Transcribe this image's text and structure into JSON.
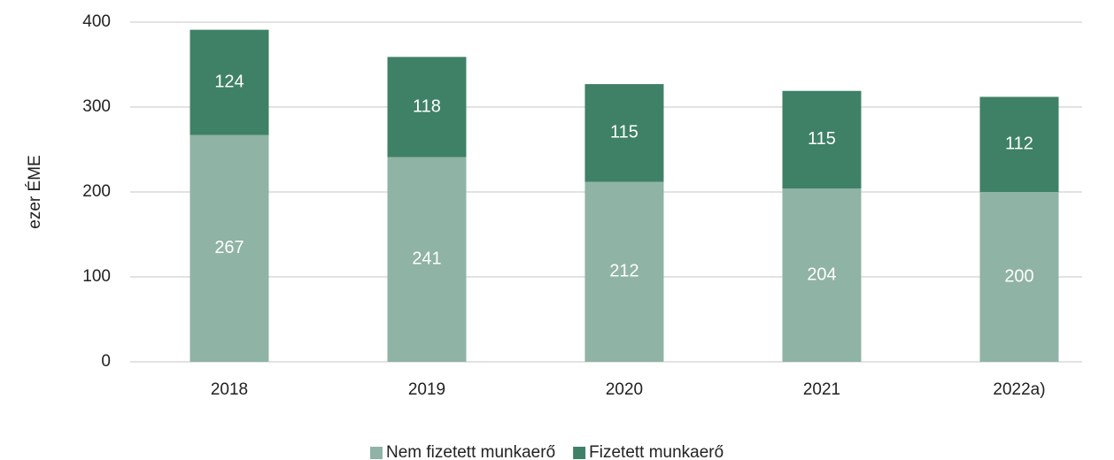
{
  "chart_data": {
    "type": "stacked_bar",
    "y_label": "ezer ÉME",
    "categories": [
      "2018",
      "2019",
      "2020",
      "2021",
      "2022a)"
    ],
    "series": [
      {
        "name": "Nem fizetett munkaerő",
        "color": "#8fb3a4",
        "values": [
          267,
          241,
          212,
          204,
          200
        ]
      },
      {
        "name": "Fizetett munkaerő",
        "color": "#3f8166",
        "values": [
          124,
          118,
          115,
          115,
          112
        ]
      }
    ],
    "ylim": [
      0,
      400
    ],
    "yticks": [
      0,
      100,
      200,
      300,
      400
    ],
    "grid": true,
    "legend": "bottom"
  }
}
